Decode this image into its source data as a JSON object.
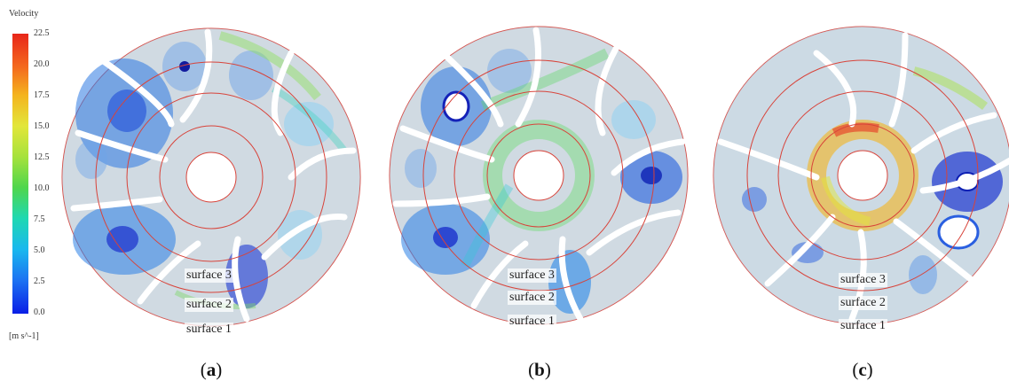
{
  "legend": {
    "title": "Velocity",
    "units": "[m s^-1]",
    "ticks": [
      "22.5",
      "20.0",
      "17.5",
      "15.0",
      "12.5",
      "10.0",
      "7.5",
      "5.0",
      "2.5",
      "0.0"
    ]
  },
  "panels": [
    {
      "id": "a",
      "caption_open": "(",
      "caption_letter": "a",
      "caption_close": ")",
      "surfaces": [
        "surface 3",
        "surface 2",
        "surface 1"
      ]
    },
    {
      "id": "b",
      "caption_open": "(",
      "caption_letter": "b",
      "caption_close": ")",
      "surfaces": [
        "surface 3",
        "surface 2",
        "surface 1"
      ]
    },
    {
      "id": "c",
      "caption_open": "(",
      "caption_letter": "c",
      "caption_close": ")",
      "surfaces": [
        "surface 3",
        "surface 2",
        "surface 1"
      ]
    }
  ]
}
